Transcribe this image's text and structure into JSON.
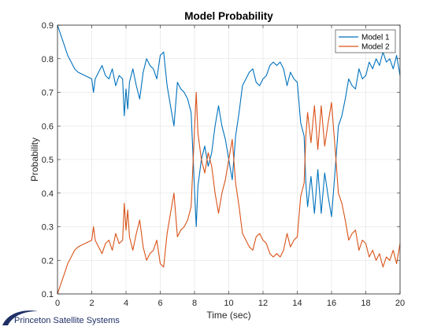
{
  "chart_data": {
    "type": "line",
    "title": "Model Probability",
    "xlabel": "Time (sec)",
    "ylabel": "Probability",
    "xlim": [
      0,
      20
    ],
    "ylim": [
      0.1,
      0.9
    ],
    "xticks": [
      0,
      2,
      4,
      6,
      8,
      10,
      12,
      14,
      16,
      18,
      20
    ],
    "yticks": [
      0.1,
      0.2,
      0.3,
      0.4,
      0.5,
      0.6,
      0.7,
      0.8,
      0.9
    ],
    "grid": true,
    "legend_position": "top-right",
    "series": [
      {
        "name": "Model 1",
        "color": "#0072BD",
        "x": [
          0,
          0.2,
          0.4,
          0.6,
          0.8,
          1.0,
          1.2,
          1.4,
          1.6,
          1.8,
          2.0,
          2.1,
          2.2,
          2.4,
          2.6,
          2.8,
          3.0,
          3.2,
          3.4,
          3.6,
          3.8,
          3.9,
          4.0,
          4.1,
          4.2,
          4.4,
          4.6,
          4.8,
          5.0,
          5.2,
          5.4,
          5.6,
          5.8,
          6.0,
          6.2,
          6.4,
          6.6,
          6.8,
          7.0,
          7.2,
          7.4,
          7.6,
          7.8,
          8.0,
          8.1,
          8.2,
          8.4,
          8.6,
          8.8,
          9.0,
          9.2,
          9.4,
          9.6,
          9.8,
          10.0,
          10.2,
          10.4,
          10.6,
          10.8,
          11.0,
          11.2,
          11.4,
          11.6,
          11.8,
          12.0,
          12.2,
          12.4,
          12.6,
          12.8,
          13.0,
          13.2,
          13.4,
          13.6,
          13.8,
          14.0,
          14.2,
          14.4,
          14.5,
          14.6,
          14.8,
          15.0,
          15.2,
          15.4,
          15.6,
          15.8,
          16.0,
          16.2,
          16.4,
          16.6,
          16.8,
          17.0,
          17.2,
          17.4,
          17.6,
          17.8,
          18.0,
          18.2,
          18.4,
          18.6,
          18.8,
          19.0,
          19.2,
          19.4,
          19.6,
          19.8,
          20.0
        ],
        "values": [
          0.9,
          0.87,
          0.84,
          0.81,
          0.79,
          0.77,
          0.76,
          0.755,
          0.75,
          0.745,
          0.74,
          0.7,
          0.74,
          0.76,
          0.78,
          0.75,
          0.74,
          0.77,
          0.72,
          0.75,
          0.74,
          0.63,
          0.71,
          0.65,
          0.73,
          0.77,
          0.72,
          0.68,
          0.76,
          0.8,
          0.78,
          0.77,
          0.74,
          0.81,
          0.82,
          0.72,
          0.66,
          0.6,
          0.73,
          0.71,
          0.7,
          0.68,
          0.64,
          0.41,
          0.3,
          0.42,
          0.5,
          0.54,
          0.48,
          0.52,
          0.6,
          0.66,
          0.6,
          0.56,
          0.5,
          0.44,
          0.57,
          0.64,
          0.72,
          0.74,
          0.76,
          0.77,
          0.73,
          0.72,
          0.74,
          0.75,
          0.78,
          0.79,
          0.78,
          0.79,
          0.77,
          0.72,
          0.76,
          0.74,
          0.73,
          0.61,
          0.57,
          0.43,
          0.36,
          0.45,
          0.34,
          0.47,
          0.34,
          0.46,
          0.39,
          0.33,
          0.46,
          0.6,
          0.63,
          0.68,
          0.74,
          0.72,
          0.71,
          0.77,
          0.74,
          0.75,
          0.79,
          0.77,
          0.8,
          0.78,
          0.82,
          0.79,
          0.8,
          0.77,
          0.81,
          0.75
        ]
      },
      {
        "name": "Model 2",
        "color": "#D95319",
        "x": [
          0,
          0.2,
          0.4,
          0.6,
          0.8,
          1.0,
          1.2,
          1.4,
          1.6,
          1.8,
          2.0,
          2.1,
          2.2,
          2.4,
          2.6,
          2.8,
          3.0,
          3.2,
          3.4,
          3.6,
          3.8,
          3.9,
          4.0,
          4.1,
          4.2,
          4.4,
          4.6,
          4.8,
          5.0,
          5.2,
          5.4,
          5.6,
          5.8,
          6.0,
          6.2,
          6.4,
          6.6,
          6.8,
          7.0,
          7.2,
          7.4,
          7.6,
          7.8,
          8.0,
          8.1,
          8.2,
          8.4,
          8.6,
          8.8,
          9.0,
          9.2,
          9.4,
          9.6,
          9.8,
          10.0,
          10.2,
          10.4,
          10.6,
          10.8,
          11.0,
          11.2,
          11.4,
          11.6,
          11.8,
          12.0,
          12.2,
          12.4,
          12.6,
          12.8,
          13.0,
          13.2,
          13.4,
          13.6,
          13.8,
          14.0,
          14.2,
          14.4,
          14.5,
          14.6,
          14.8,
          15.0,
          15.2,
          15.4,
          15.6,
          15.8,
          16.0,
          16.2,
          16.4,
          16.6,
          16.8,
          17.0,
          17.2,
          17.4,
          17.6,
          17.8,
          18.0,
          18.2,
          18.4,
          18.6,
          18.8,
          19.0,
          19.2,
          19.4,
          19.6,
          19.8,
          20.0
        ],
        "values": [
          0.1,
          0.13,
          0.16,
          0.19,
          0.21,
          0.23,
          0.24,
          0.245,
          0.25,
          0.255,
          0.26,
          0.3,
          0.26,
          0.24,
          0.22,
          0.25,
          0.26,
          0.23,
          0.28,
          0.25,
          0.26,
          0.37,
          0.29,
          0.35,
          0.27,
          0.23,
          0.28,
          0.32,
          0.24,
          0.2,
          0.22,
          0.23,
          0.26,
          0.19,
          0.18,
          0.28,
          0.34,
          0.4,
          0.27,
          0.29,
          0.3,
          0.32,
          0.36,
          0.59,
          0.7,
          0.58,
          0.5,
          0.46,
          0.52,
          0.48,
          0.4,
          0.34,
          0.4,
          0.44,
          0.5,
          0.56,
          0.43,
          0.36,
          0.28,
          0.26,
          0.24,
          0.23,
          0.27,
          0.28,
          0.26,
          0.25,
          0.22,
          0.21,
          0.22,
          0.21,
          0.23,
          0.28,
          0.24,
          0.26,
          0.27,
          0.39,
          0.43,
          0.57,
          0.64,
          0.55,
          0.66,
          0.53,
          0.66,
          0.54,
          0.61,
          0.67,
          0.54,
          0.4,
          0.37,
          0.32,
          0.26,
          0.28,
          0.29,
          0.23,
          0.26,
          0.25,
          0.21,
          0.23,
          0.2,
          0.22,
          0.18,
          0.21,
          0.2,
          0.23,
          0.19,
          0.25
        ]
      }
    ]
  },
  "footer": {
    "brand_text": "Princeton Satellite Systems"
  }
}
